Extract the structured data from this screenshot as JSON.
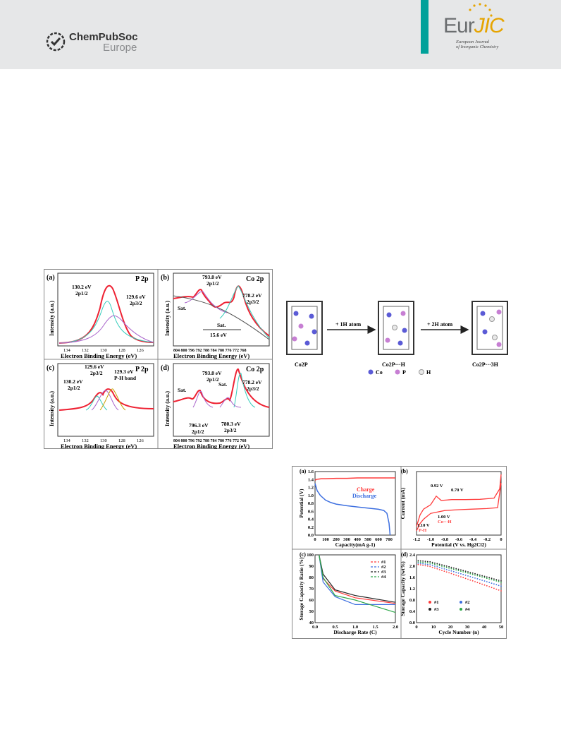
{
  "header": {
    "publisher_name": "ChemPubSoc",
    "publisher_region": "Europe",
    "journal_short_prefix": "Eur",
    "journal_short_suffix": "JIC",
    "journal_full_line1": "European Journal",
    "journal_full_line2": "of Inorganic Chemistry"
  },
  "xps_figure": {
    "panels": [
      {
        "tag": "(a)",
        "element": "P 2p",
        "peaks": [
          {
            "energy": "130.2 eV",
            "orbital": "2p1/2"
          },
          {
            "energy": "129.6 eV",
            "orbital": "2p3/2"
          }
        ],
        "x_ticks": [
          "134",
          "132",
          "130",
          "128",
          "126"
        ]
      },
      {
        "tag": "(b)",
        "element": "Co 2p",
        "peaks": [
          {
            "energy": "793.8 eV",
            "orbital": "2p1/2"
          },
          {
            "energy": "778.2 eV",
            "orbital": "2p3/2"
          }
        ],
        "labels": [
          "Sat.",
          "Sat.",
          "15.6 eV"
        ],
        "x_ticks": [
          "804",
          "800",
          "796",
          "792",
          "788",
          "784",
          "780",
          "776",
          "772",
          "768"
        ]
      },
      {
        "tag": "(c)",
        "element": "P 2p",
        "peaks": [
          {
            "energy": "129.6 eV",
            "orbital": "2p3/2"
          },
          {
            "energy": "129.3 eV",
            "orbital": "P-H band"
          },
          {
            "energy": "130.2 eV",
            "orbital": "2p1/2"
          }
        ],
        "x_ticks": [
          "134",
          "132",
          "130",
          "128",
          "126"
        ]
      },
      {
        "tag": "(d)",
        "element": "Co 2p",
        "peaks": [
          {
            "energy": "793.8 eV",
            "orbital": "2p1/2"
          },
          {
            "energy": "778.2 eV",
            "orbital": "2p3/2"
          },
          {
            "energy": "796.3 eV",
            "orbital": "2p1/2"
          },
          {
            "energy": "780.3 eV",
            "orbital": "2p3/2"
          }
        ],
        "labels": [
          "Sat.",
          "Sat."
        ],
        "x_ticks": [
          "804",
          "800",
          "796",
          "792",
          "788",
          "784",
          "780",
          "776",
          "772",
          "768"
        ]
      }
    ],
    "ylabel": "Intensity (a.u.)",
    "xlabel": "Electron Binding Energy (eV)"
  },
  "scheme": {
    "boxes": [
      "Co2P",
      "Co2P···H",
      "Co2P···3H"
    ],
    "arrows": [
      "+ 1H atom",
      "+ 2H atom"
    ],
    "legend": [
      "Co",
      "P",
      "H"
    ],
    "colors": {
      "Co": "#5b5bd6",
      "P": "#c77fd3",
      "H": "#e8e8e8"
    }
  },
  "chart_data": [
    {
      "type": "line",
      "tag": "(a)",
      "xlabel": "Capacity(mA g-1)",
      "ylabel": "Potential (V)",
      "xlim": [
        0,
        760
      ],
      "ylim": [
        0,
        1.6
      ],
      "x_ticks": [
        "0",
        "100",
        "200",
        "300",
        "400",
        "500",
        "600",
        "700"
      ],
      "y_ticks": [
        "0.0",
        "0.2",
        "0.4",
        "0.6",
        "0.8",
        "1.0",
        "1.2",
        "1.4",
        "1.6"
      ],
      "series": [
        {
          "name": "Charge",
          "color": "#ff3b3b",
          "x": [
            0,
            10,
            30,
            60,
            100,
            200,
            300,
            400,
            500,
            600,
            700,
            760
          ],
          "y": [
            1.38,
            1.4,
            1.41,
            1.42,
            1.42,
            1.43,
            1.43,
            1.44,
            1.44,
            1.44,
            1.44,
            1.44
          ]
        },
        {
          "name": "Discharge",
          "color": "#3d6fe0",
          "x": [
            0,
            20,
            50,
            100,
            150,
            200,
            300,
            400,
            500,
            600,
            650,
            680,
            700,
            710
          ],
          "y": [
            1.3,
            1.12,
            1.0,
            0.88,
            0.82,
            0.78,
            0.74,
            0.71,
            0.68,
            0.65,
            0.62,
            0.55,
            0.3,
            0.0
          ]
        }
      ]
    },
    {
      "type": "line",
      "tag": "(b)",
      "xlabel": "Potential (V vs. Hg2Cl2)",
      "ylabel": "Current (mA)",
      "xlim": [
        -1.2,
        0.0
      ],
      "x_ticks": [
        "-1.2",
        "-1.0",
        "-0.8",
        "-0.6",
        "-0.4",
        "-0.2",
        "0"
      ],
      "annotations": [
        "0.92 V",
        "0.70 V",
        "1.00 V",
        "Co···H",
        "1.10 V",
        "P-H"
      ],
      "series": [
        {
          "name": "",
          "color": "#ff3b3b",
          "x": [
            -1.2,
            -1.15,
            -1.1,
            -1.0,
            -0.92,
            -0.85,
            -0.7,
            -0.5,
            -0.3,
            -0.1,
            -0.02,
            0.0
          ],
          "y": [
            -0.6,
            -0.2,
            0.0,
            0.15,
            0.45,
            0.3,
            0.33,
            0.33,
            0.34,
            0.38,
            0.7,
            1.2
          ]
        },
        {
          "name": "",
          "color": "#ff3b3b",
          "x": [
            0.0,
            -0.05,
            -0.2,
            -0.4,
            -0.6,
            -0.8,
            -1.0,
            -1.1,
            -1.15,
            -1.2
          ],
          "y": [
            0.9,
            0.05,
            0.02,
            0.0,
            -0.02,
            -0.05,
            -0.15,
            -0.35,
            -0.5,
            -0.75
          ]
        }
      ]
    },
    {
      "type": "line",
      "tag": "(c)",
      "xlabel": "Discharge Rate (C)",
      "ylabel": "Storage Capacity Ratio (%)",
      "xlim": [
        0,
        2.0
      ],
      "ylim": [
        40,
        100
      ],
      "x_ticks": [
        "0.0",
        "0.5",
        "1.0",
        "1.5",
        "2.0"
      ],
      "y_ticks": [
        "40",
        "50",
        "60",
        "70",
        "80",
        "90",
        "100"
      ],
      "series": [
        {
          "name": "#1",
          "color": "#ff3b3b",
          "x": [
            0.1,
            0.2,
            0.5,
            1.0,
            2.0
          ],
          "y": [
            100,
            79,
            68,
            62,
            57
          ]
        },
        {
          "name": "#2",
          "color": "#3d6fe0",
          "x": [
            0.1,
            0.2,
            0.5,
            1.0,
            2.0
          ],
          "y": [
            100,
            76,
            63,
            56,
            56
          ]
        },
        {
          "name": "#3",
          "color": "#222222",
          "x": [
            0.1,
            0.2,
            0.5,
            1.0,
            2.0
          ],
          "y": [
            100,
            83,
            69,
            64,
            58
          ]
        },
        {
          "name": "#4",
          "color": "#2ea84a",
          "x": [
            0.1,
            0.2,
            0.5,
            1.0,
            2.0
          ],
          "y": [
            100,
            80,
            64,
            60,
            49
          ]
        }
      ]
    },
    {
      "type": "scatter",
      "tag": "(d)",
      "xlabel": "Cycle Number (n)",
      "ylabel": "Storage Capacity (wt%)",
      "xlim": [
        0,
        50
      ],
      "ylim": [
        0,
        2.6
      ],
      "x_ticks": [
        "0",
        "10",
        "20",
        "30",
        "40",
        "50"
      ],
      "y_ticks": [
        "0.0",
        "0.4",
        "0.8",
        "1.2",
        "1.6",
        "2.0",
        "2.4"
      ],
      "series": [
        {
          "name": "#1",
          "color": "#ff3b3b",
          "start": 2.3,
          "end": 1.22
        },
        {
          "name": "#2",
          "color": "#3d6fe0",
          "start": 2.35,
          "end": 1.4
        },
        {
          "name": "#3",
          "color": "#222222",
          "start": 2.45,
          "end": 1.6
        },
        {
          "name": "#4",
          "color": "#2ea84a",
          "start": 2.4,
          "end": 1.55
        }
      ]
    }
  ]
}
